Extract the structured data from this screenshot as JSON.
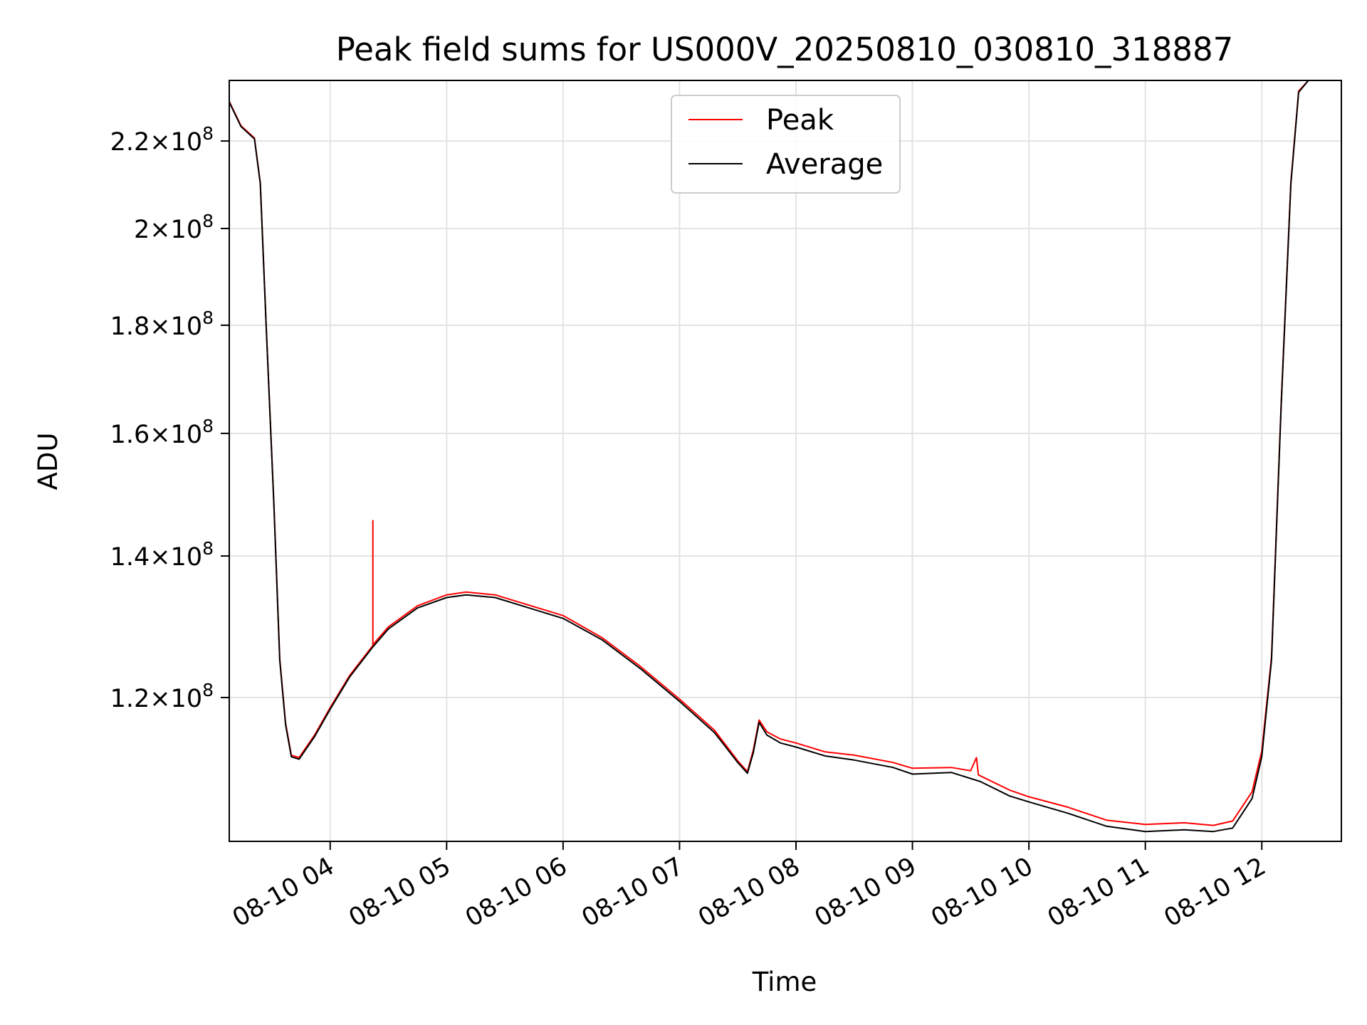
{
  "chart_data": {
    "type": "line",
    "title": "Peak field sums for US000V_20250810_030810_318887",
    "xlabel": "Time",
    "ylabel": "ADU",
    "x_scale": "time",
    "y_scale": "log",
    "xlim": [
      "2025-08-10 03:08",
      "2025-08-10 12:41"
    ],
    "ylim": [
      102600000,
      235000000
    ],
    "grid": true,
    "legend_position": "top-center",
    "x_ticks": [
      {
        "value": "2025-08-10 04:00",
        "label": "08-10 04"
      },
      {
        "value": "2025-08-10 05:00",
        "label": "08-10 05"
      },
      {
        "value": "2025-08-10 06:00",
        "label": "08-10 06"
      },
      {
        "value": "2025-08-10 07:00",
        "label": "08-10 07"
      },
      {
        "value": "2025-08-10 08:00",
        "label": "08-10 08"
      },
      {
        "value": "2025-08-10 09:00",
        "label": "08-10 09"
      },
      {
        "value": "2025-08-10 10:00",
        "label": "08-10 10"
      },
      {
        "value": "2025-08-10 11:00",
        "label": "08-10 11"
      },
      {
        "value": "2025-08-10 12:00",
        "label": "08-10 12"
      }
    ],
    "y_ticks": [
      {
        "value": 120000000,
        "mantissa": "1.2",
        "base": "10",
        "exponent": "8"
      },
      {
        "value": 140000000,
        "mantissa": "1.4",
        "base": "10",
        "exponent": "8"
      },
      {
        "value": 160000000,
        "mantissa": "1.6",
        "base": "10",
        "exponent": "8"
      },
      {
        "value": 180000000,
        "mantissa": "1.8",
        "base": "10",
        "exponent": "8"
      },
      {
        "value": 200000000,
        "mantissa": "2",
        "base": "10",
        "exponent": "8"
      },
      {
        "value": 220000000,
        "mantissa": "2.2",
        "base": "10",
        "exponent": "8"
      }
    ],
    "series": [
      {
        "name": "Average",
        "color": "#000000",
        "points": [
          [
            "2025-08-10 03:08",
            229500000
          ],
          [
            "2025-08-10 03:14",
            223500000
          ],
          [
            "2025-08-10 03:21",
            220500000
          ],
          [
            "2025-08-10 03:24",
            210000000
          ],
          [
            "2025-08-10 03:27",
            180000000
          ],
          [
            "2025-08-10 03:31",
            148000000
          ],
          [
            "2025-08-10 03:34",
            125000000
          ],
          [
            "2025-08-10 03:37",
            116500000
          ],
          [
            "2025-08-10 03:40",
            112500000
          ],
          [
            "2025-08-10 03:44",
            112200000
          ],
          [
            "2025-08-10 03:52",
            115000000
          ],
          [
            "2025-08-10 04:00",
            118500000
          ],
          [
            "2025-08-10 04:10",
            122700000
          ],
          [
            "2025-08-10 04:22",
            126800000
          ],
          [
            "2025-08-10 04:30",
            129300000
          ],
          [
            "2025-08-10 04:45",
            132300000
          ],
          [
            "2025-08-10 05:00",
            133800000
          ],
          [
            "2025-08-10 05:10",
            134200000
          ],
          [
            "2025-08-10 05:25",
            133800000
          ],
          [
            "2025-08-10 05:40",
            132500000
          ],
          [
            "2025-08-10 06:00",
            130800000
          ],
          [
            "2025-08-10 06:20",
            127800000
          ],
          [
            "2025-08-10 06:40",
            123800000
          ],
          [
            "2025-08-10 07:00",
            119500000
          ],
          [
            "2025-08-10 07:18",
            115500000
          ],
          [
            "2025-08-10 07:30",
            111800000
          ],
          [
            "2025-08-10 07:35",
            110500000
          ],
          [
            "2025-08-10 07:38",
            113000000
          ],
          [
            "2025-08-10 07:41",
            116800000
          ],
          [
            "2025-08-10 07:45",
            115200000
          ],
          [
            "2025-08-10 07:52",
            114200000
          ],
          [
            "2025-08-10 08:00",
            113700000
          ],
          [
            "2025-08-10 08:15",
            112600000
          ],
          [
            "2025-08-10 08:30",
            112100000
          ],
          [
            "2025-08-10 08:50",
            111200000
          ],
          [
            "2025-08-10 09:00",
            110400000
          ],
          [
            "2025-08-10 09:20",
            110600000
          ],
          [
            "2025-08-10 09:35",
            109500000
          ],
          [
            "2025-08-10 09:50",
            107800000
          ],
          [
            "2025-08-10 10:00",
            107100000
          ],
          [
            "2025-08-10 10:20",
            105800000
          ],
          [
            "2025-08-10 10:40",
            104300000
          ],
          [
            "2025-08-10 11:00",
            103700000
          ],
          [
            "2025-08-10 11:20",
            103900000
          ],
          [
            "2025-08-10 11:35",
            103700000
          ],
          [
            "2025-08-10 11:45",
            104100000
          ],
          [
            "2025-08-10 11:55",
            107500000
          ],
          [
            "2025-08-10 12:00",
            112500000
          ],
          [
            "2025-08-10 12:05",
            125000000
          ],
          [
            "2025-08-10 12:10",
            165000000
          ],
          [
            "2025-08-10 12:15",
            210000000
          ],
          [
            "2025-08-10 12:19",
            232000000
          ],
          [
            "2025-08-10 12:24",
            236000000
          ],
          [
            "2025-08-10 12:41",
            236000000
          ]
        ]
      },
      {
        "name": "Peak",
        "color": "#ff0000",
        "points": [
          [
            "2025-08-10 03:08",
            229700000
          ],
          [
            "2025-08-10 03:14",
            223700000
          ],
          [
            "2025-08-10 03:21",
            220700000
          ],
          [
            "2025-08-10 03:24",
            210200000
          ],
          [
            "2025-08-10 03:27",
            180200000
          ],
          [
            "2025-08-10 03:31",
            148200000
          ],
          [
            "2025-08-10 03:34",
            125200000
          ],
          [
            "2025-08-10 03:37",
            116700000
          ],
          [
            "2025-08-10 03:40",
            112700000
          ],
          [
            "2025-08-10 03:44",
            112400000
          ],
          [
            "2025-08-10 03:52",
            115200000
          ],
          [
            "2025-08-10 04:00",
            118700000
          ],
          [
            "2025-08-10 04:10",
            122900000
          ],
          [
            "2025-08-10 04:22",
            127000000
          ],
          [
            "2025-08-10 04:22",
            145500000
          ],
          [
            "2025-08-10 04:22",
            127100000
          ],
          [
            "2025-08-10 04:30",
            129600000
          ],
          [
            "2025-08-10 04:45",
            132600000
          ],
          [
            "2025-08-10 05:00",
            134200000
          ],
          [
            "2025-08-10 05:10",
            134600000
          ],
          [
            "2025-08-10 05:25",
            134200000
          ],
          [
            "2025-08-10 05:40",
            132900000
          ],
          [
            "2025-08-10 06:00",
            131200000
          ],
          [
            "2025-08-10 06:20",
            128100000
          ],
          [
            "2025-08-10 06:40",
            124100000
          ],
          [
            "2025-08-10 07:00",
            119800000
          ],
          [
            "2025-08-10 07:18",
            115800000
          ],
          [
            "2025-08-10 07:30",
            112000000
          ],
          [
            "2025-08-10 07:35",
            110700000
          ],
          [
            "2025-08-10 07:38",
            113300000
          ],
          [
            "2025-08-10 07:41",
            117100000
          ],
          [
            "2025-08-10 07:45",
            115600000
          ],
          [
            "2025-08-10 07:52",
            114700000
          ],
          [
            "2025-08-10 08:00",
            114200000
          ],
          [
            "2025-08-10 08:15",
            113100000
          ],
          [
            "2025-08-10 08:30",
            112700000
          ],
          [
            "2025-08-10 08:50",
            111800000
          ],
          [
            "2025-08-10 09:00",
            111100000
          ],
          [
            "2025-08-10 09:20",
            111200000
          ],
          [
            "2025-08-10 09:30",
            110800000
          ],
          [
            "2025-08-10 09:33",
            112400000
          ],
          [
            "2025-08-10 09:34",
            110300000
          ],
          [
            "2025-08-10 09:50",
            108500000
          ],
          [
            "2025-08-10 10:00",
            107700000
          ],
          [
            "2025-08-10 10:20",
            106500000
          ],
          [
            "2025-08-10 10:40",
            105000000
          ],
          [
            "2025-08-10 11:00",
            104500000
          ],
          [
            "2025-08-10 11:20",
            104700000
          ],
          [
            "2025-08-10 11:35",
            104400000
          ],
          [
            "2025-08-10 11:45",
            104900000
          ],
          [
            "2025-08-10 11:55",
            108300000
          ],
          [
            "2025-08-10 12:00",
            113200000
          ],
          [
            "2025-08-10 12:05",
            125400000
          ],
          [
            "2025-08-10 12:10",
            165400000
          ],
          [
            "2025-08-10 12:15",
            210400000
          ],
          [
            "2025-08-10 12:19",
            232300000
          ],
          [
            "2025-08-10 12:24",
            236000000
          ],
          [
            "2025-08-10 12:41",
            236000000
          ]
        ]
      }
    ],
    "legend": [
      {
        "label": "Peak",
        "color": "#ff0000"
      },
      {
        "label": "Average",
        "color": "#000000"
      }
    ]
  }
}
